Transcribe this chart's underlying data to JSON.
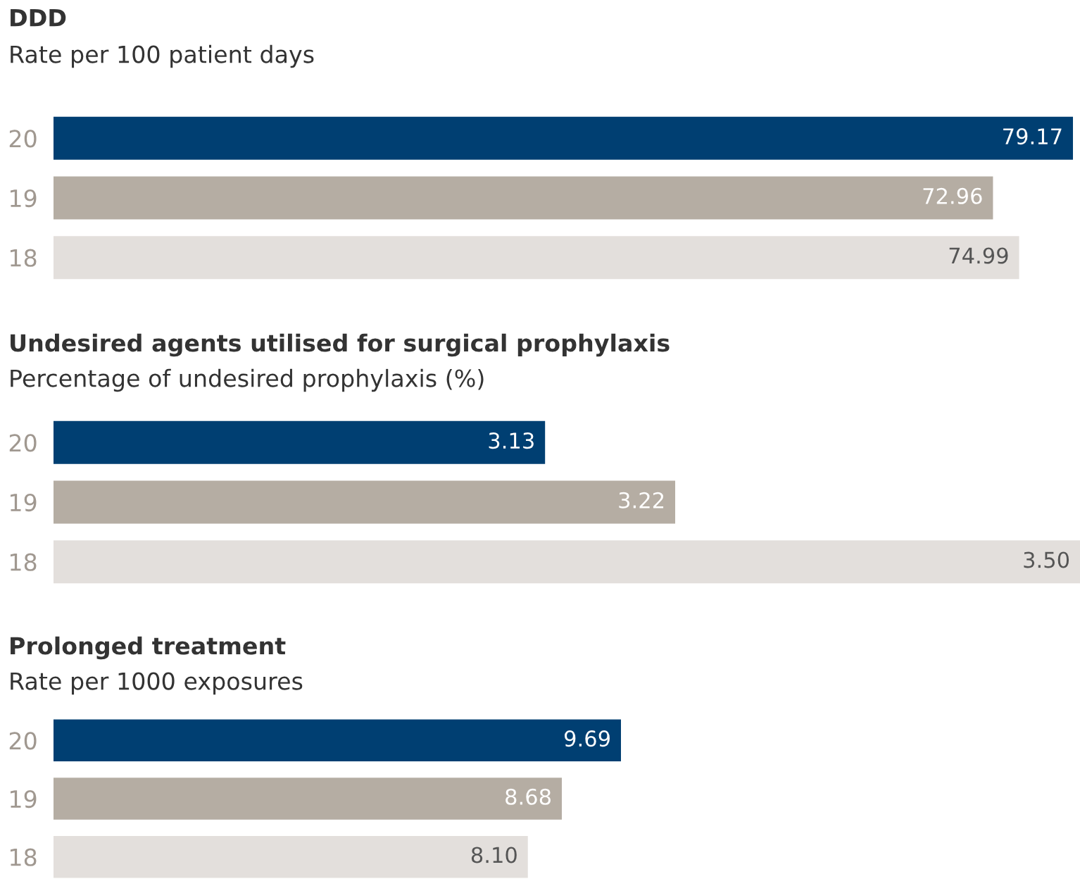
{
  "chart_data": [
    {
      "type": "bar",
      "orientation": "horizontal",
      "title": "DDD",
      "subtitle": "Rate per 100 patient days",
      "categories": [
        "20",
        "19",
        "18"
      ],
      "values": [
        79.17,
        72.96,
        74.99
      ],
      "value_labels": [
        "79.17",
        "72.96",
        "74.99"
      ],
      "colors": [
        "#003f72",
        "#b5ada3",
        "#e3dfdc"
      ],
      "tick_labels": "y"
    },
    {
      "type": "bar",
      "orientation": "horizontal",
      "title": "Undesired agents utilised for surgical prophylaxis",
      "subtitle": "Percentage of undesired prophylaxis (%)",
      "categories": [
        "20",
        "19",
        "18"
      ],
      "values": [
        3.13,
        3.22,
        3.5
      ],
      "value_labels": [
        "3.13",
        "3.22",
        "3.50"
      ],
      "colors": [
        "#003f72",
        "#b5ada3",
        "#e3dfdc"
      ],
      "xlim": [
        2.79,
        3.5
      ],
      "tick_labels": "y"
    },
    {
      "type": "bar",
      "orientation": "horizontal",
      "title": "Prolonged treatment",
      "subtitle": "Rate per 1000 exposures",
      "categories": [
        "20",
        "19",
        "18"
      ],
      "values": [
        9.69,
        8.68,
        8.1
      ],
      "value_labels": [
        "9.69",
        "8.68",
        "8.10"
      ],
      "colors": [
        "#003f72",
        "#b5ada3",
        "#e3dfdc"
      ],
      "tick_labels": "y"
    }
  ]
}
